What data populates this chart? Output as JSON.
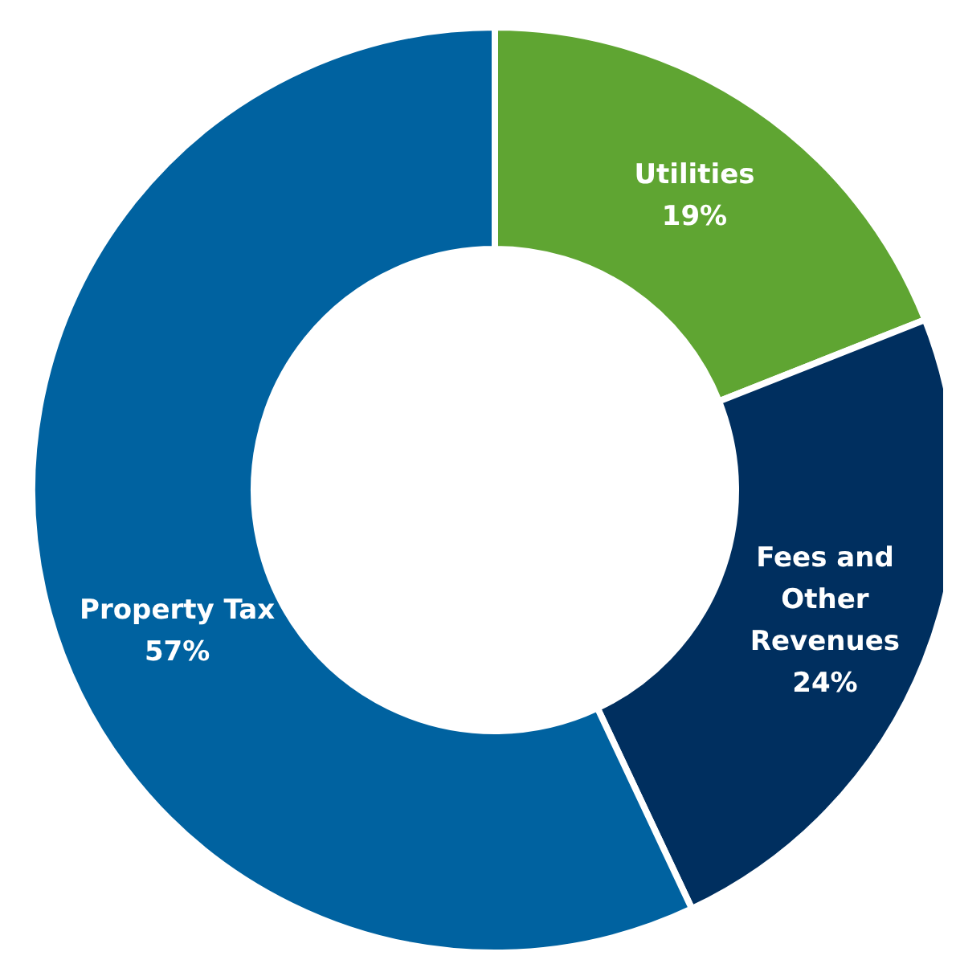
{
  "chart_data": {
    "type": "donut",
    "categories": [
      "Utilities",
      "Fees and Other Revenues",
      "Property Tax"
    ],
    "values": [
      19,
      24,
      57
    ],
    "value_labels": [
      "19%",
      "24%",
      "57%"
    ],
    "colors": [
      "#5fa532",
      "#002f5f",
      "#0062a0"
    ],
    "legend": false
  }
}
